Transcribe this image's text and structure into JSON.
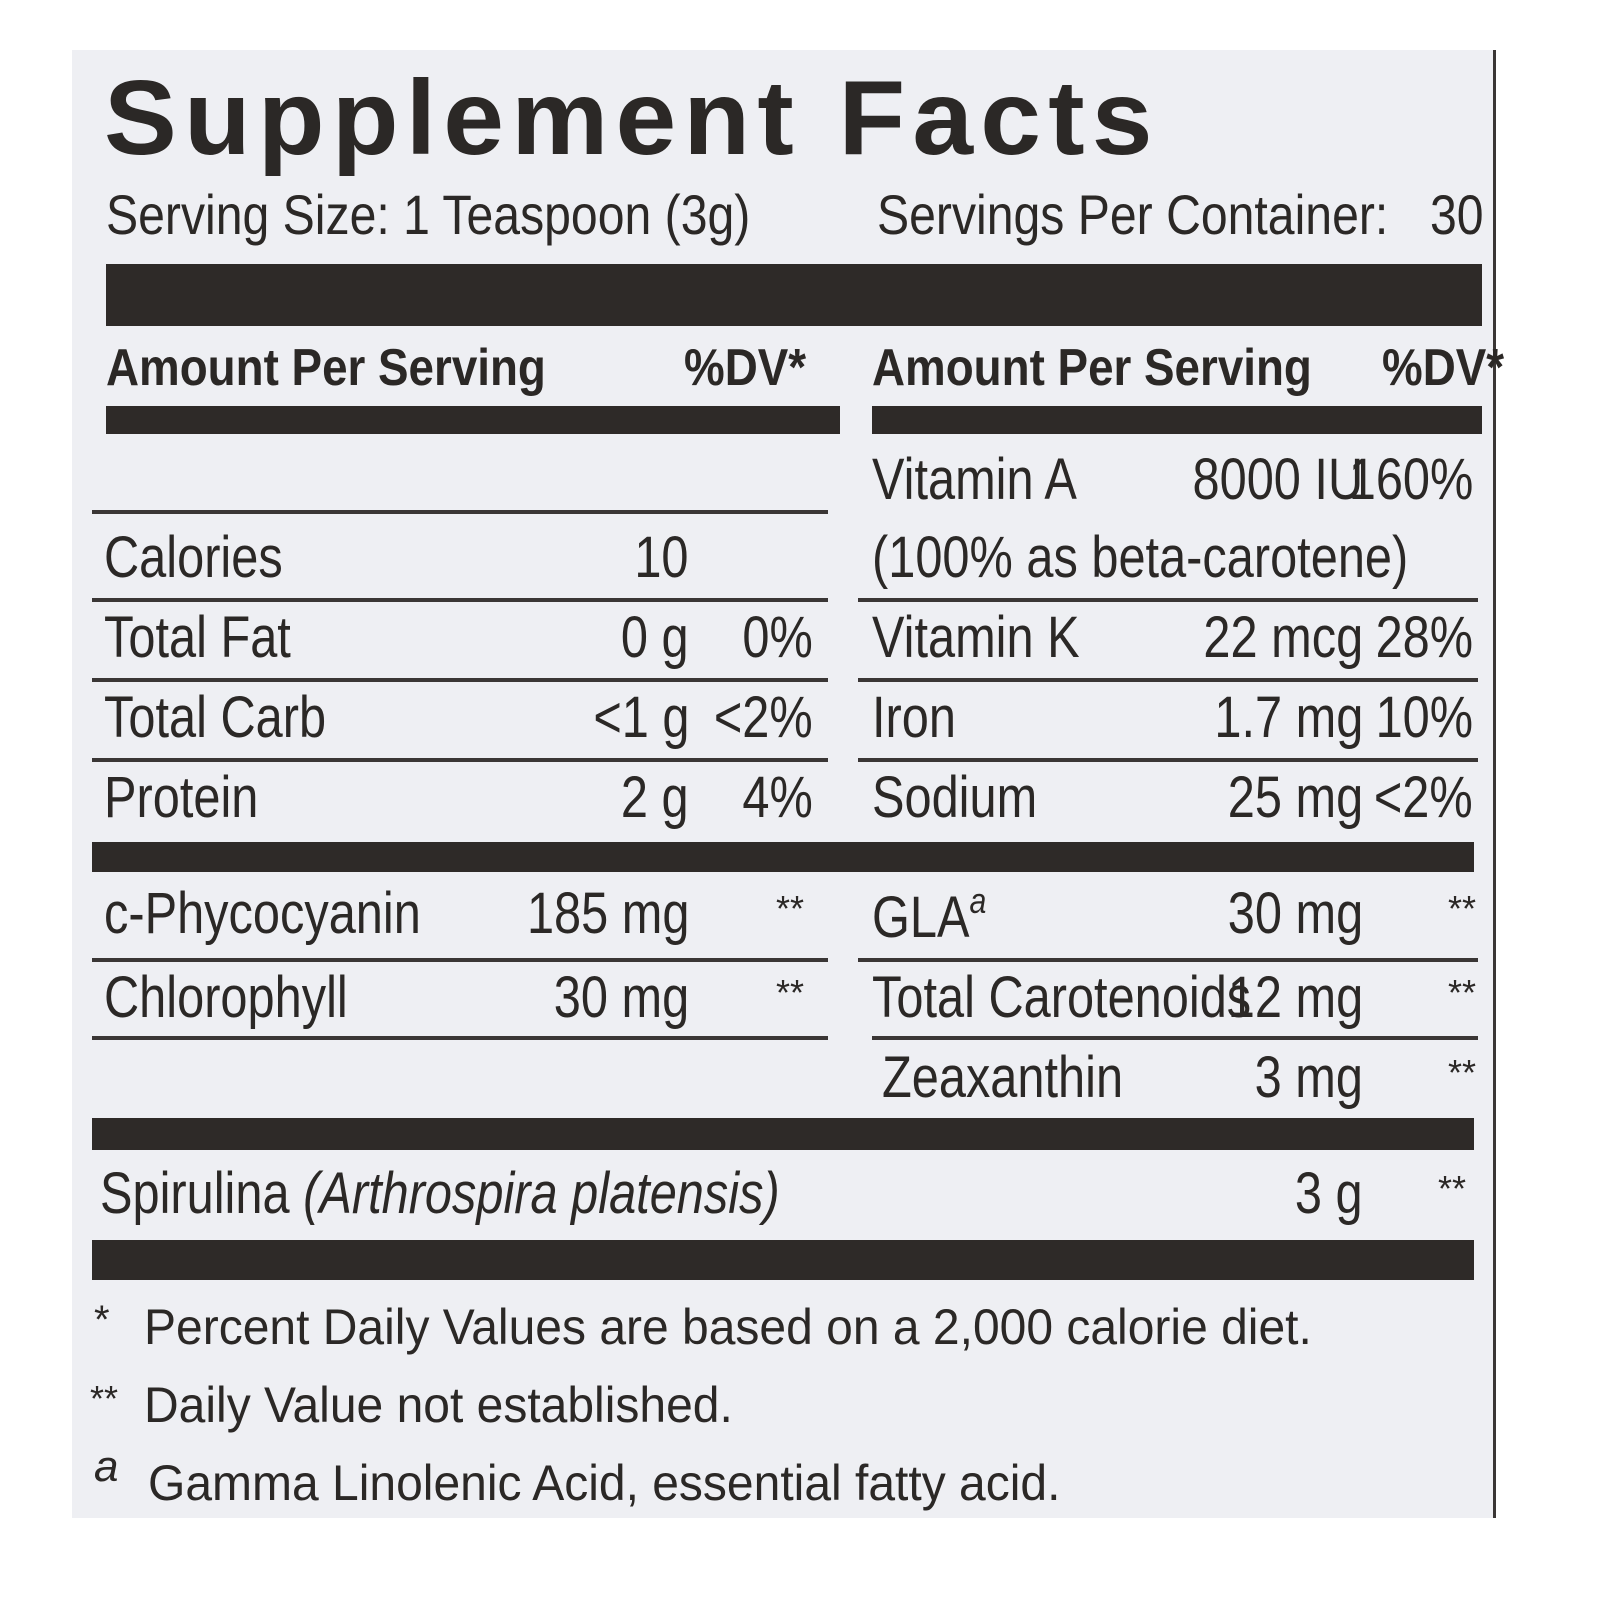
{
  "title": "Supplement Facts",
  "serving": {
    "size_label": "Serving Size: 1 Teaspoon (3g)",
    "per_container_label": "Servings Per Container:",
    "per_container_value": "30"
  },
  "headers": {
    "amount": "Amount Per Serving",
    "dv": "%DV*"
  },
  "left_rows": [
    {
      "name": "Calories",
      "amount": "10",
      "dv": ""
    },
    {
      "name": "Total Fat",
      "amount": "0 g",
      "dv": "0%"
    },
    {
      "name": "Total Carb",
      "amount": "<1 g",
      "dv": "<2%"
    },
    {
      "name": "Protein",
      "amount": "2 g",
      "dv": "4%"
    },
    {
      "name": "c-Phycocyanin",
      "amount": "185 mg",
      "dv": "**"
    },
    {
      "name": "Chlorophyll",
      "amount": "30 mg",
      "dv": "**"
    }
  ],
  "right_rows": [
    {
      "name": "Vitamin A",
      "amount": "8000 IU",
      "dv": "160%"
    },
    {
      "name": "(100% as beta-carotene)",
      "amount": "",
      "dv": ""
    },
    {
      "name": "Vitamin K",
      "amount": "22 mcg",
      "dv": "28%"
    },
    {
      "name": "Iron",
      "amount": "1.7 mg",
      "dv": "10%"
    },
    {
      "name": "Sodium",
      "amount": "25 mg",
      "dv": "<2%"
    },
    {
      "name": "GLA",
      "sup": "a",
      "amount": "30 mg",
      "dv": "**"
    },
    {
      "name": "Total Carotenoids",
      "amount": "12 mg",
      "dv": "**"
    },
    {
      "name": "Zeaxanthin",
      "amount": "3 mg",
      "dv": "**"
    }
  ],
  "spirulina": {
    "name": "Spirulina",
    "latin": "(Arthrospira platensis)",
    "amount": "3 g",
    "dv": "**"
  },
  "footnotes": [
    {
      "mark": "*",
      "text": "Percent Daily Values are based on a 2,000 calorie diet."
    },
    {
      "mark": "**",
      "text": "Daily Value not established."
    },
    {
      "mark": "a",
      "text": "Gamma Linolenic Acid, essential fatty acid."
    }
  ]
}
